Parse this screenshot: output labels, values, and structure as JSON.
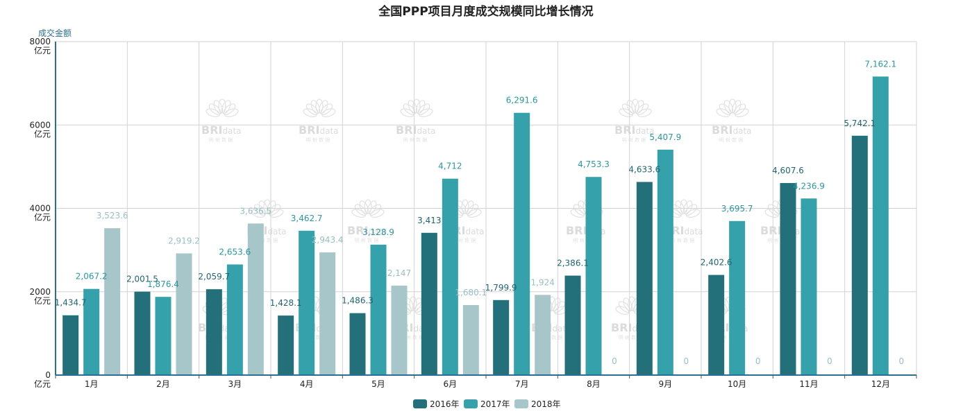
{
  "chart_data": {
    "type": "bar",
    "title": "全国PPP项目月度成交规模同比增长情况",
    "ylabel": "成交金额",
    "y_unit": "亿元",
    "ylim": [
      0,
      8000
    ],
    "yticks": [
      0,
      2000,
      4000,
      6000,
      8000
    ],
    "ytick_labels": [
      "0",
      "2000",
      "4000",
      "6000",
      "8000"
    ],
    "grid": true,
    "legend_position": "bottom-center",
    "categories": [
      "1月",
      "2月",
      "3月",
      "4月",
      "5月",
      "6月",
      "7月",
      "8月",
      "9月",
      "10月",
      "11月",
      "12月"
    ],
    "series": [
      {
        "name": "2016年",
        "color": "#23707a",
        "values": [
          1434.7,
          2001.5,
          2059.7,
          1428.1,
          1486.3,
          3413,
          1799.9,
          2386.1,
          4633.6,
          2402.6,
          4607.6,
          5742.1
        ],
        "labels": [
          "1,434.7",
          "2,001.5",
          "2,059.7",
          "1,428.1",
          "1,486.3",
          "3,413",
          "1,799.9",
          "2,386.1",
          "4,633.6",
          "2,402.6",
          "4,607.6",
          "5,742.1"
        ]
      },
      {
        "name": "2017年",
        "color": "#35a1ab",
        "values": [
          2067.2,
          1876.4,
          2653.6,
          3462.7,
          3128.9,
          4712,
          6291.6,
          4753.3,
          5407.9,
          3695.7,
          4236.9,
          7162.1
        ],
        "labels": [
          "2,067.2",
          "1,876.4",
          "2,653.6",
          "3,462.7",
          "3,128.9",
          "4,712",
          "6,291.6",
          "4,753.3",
          "5,407.9",
          "3,695.7",
          "4,236.9",
          "7,162.1"
        ]
      },
      {
        "name": "2018年",
        "color": "#a7c6c9",
        "values": [
          3523.6,
          2919.2,
          3636.5,
          2943.4,
          2147,
          1680.1,
          1924,
          0,
          0,
          0,
          0,
          0
        ],
        "labels": [
          "3,523.6",
          "2,919.2",
          "3,636.5",
          "2,943.4",
          "2,147",
          "1,680.1",
          "1,924",
          "0",
          "0",
          "0",
          "0",
          "0"
        ]
      }
    ]
  },
  "watermark": {
    "brand": "BRIdata",
    "brand_main": "BRI",
    "brand_sub": "data",
    "tagline": "明 树 数 据",
    "color": "#d8d8d8"
  }
}
